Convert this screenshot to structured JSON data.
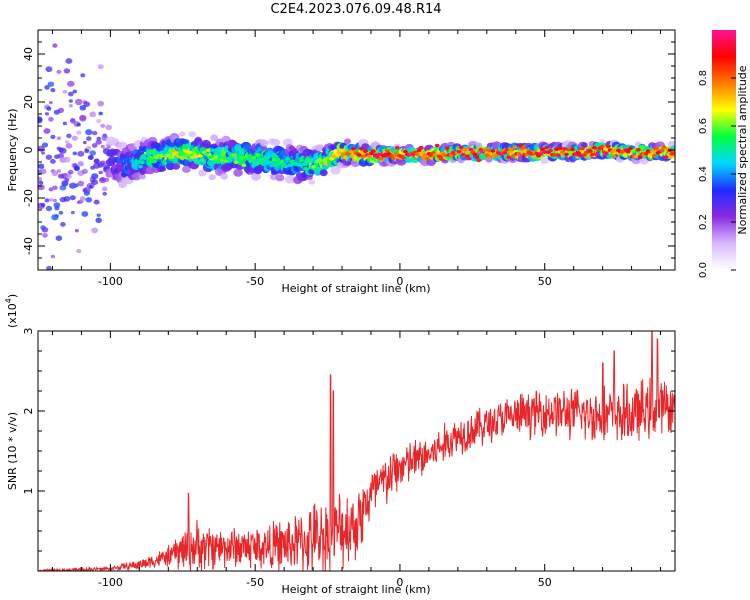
{
  "title": "C2E4.2023.076.09.48.R14",
  "colors": {
    "background": "#ffffff",
    "axis": "#000000",
    "snr_line": "#e8262a"
  },
  "chart_data": [
    {
      "type": "heatmap",
      "name": "spectrogram",
      "xlabel": "Height of straight line (km)",
      "ylabel": "Frequency (Hz)",
      "xlim": [
        -125,
        95
      ],
      "ylim": [
        -50,
        50
      ],
      "xticks": [
        -100,
        -50,
        0,
        50
      ],
      "yticks": [
        -40,
        -20,
        0,
        20,
        40
      ],
      "colorbar": {
        "label": "Normalized spectral amplitude",
        "range": [
          0.0,
          1.0
        ],
        "ticks": [
          "0.0",
          "0.2",
          "0.4",
          "0.6",
          "0.8"
        ],
        "colormap": [
          "#ffffff",
          "#d9b8ff",
          "#8a2be2",
          "#1f2bff",
          "#00d8ff",
          "#00ff40",
          "#ffff00",
          "#ff7a00",
          "#ff0000",
          "#ff1493"
        ]
      },
      "ridge": [
        {
          "x": -125,
          "center_hz": 0,
          "spread_hz": 50,
          "peak": 0.35
        },
        {
          "x": -100,
          "center_hz": -5,
          "spread_hz": 12,
          "peak": 0.3
        },
        {
          "x": -95,
          "center_hz": -6,
          "spread_hz": 9,
          "peak": 0.4
        },
        {
          "x": -85,
          "center_hz": -3,
          "spread_hz": 8,
          "peak": 0.6
        },
        {
          "x": -75,
          "center_hz": -1,
          "spread_hz": 7,
          "peak": 0.7
        },
        {
          "x": -65,
          "center_hz": -3,
          "spread_hz": 8,
          "peak": 0.6
        },
        {
          "x": -55,
          "center_hz": -3,
          "spread_hz": 8,
          "peak": 0.6
        },
        {
          "x": -45,
          "center_hz": -4,
          "spread_hz": 8,
          "peak": 0.55
        },
        {
          "x": -35,
          "center_hz": -6,
          "spread_hz": 8,
          "peak": 0.55
        },
        {
          "x": -28,
          "center_hz": -6,
          "spread_hz": 7,
          "peak": 0.6
        },
        {
          "x": -20,
          "center_hz": -1,
          "spread_hz": 5,
          "peak": 0.8
        },
        {
          "x": -10,
          "center_hz": -2,
          "spread_hz": 4,
          "peak": 0.95
        },
        {
          "x": 0,
          "center_hz": -2,
          "spread_hz": 3,
          "peak": 0.95
        },
        {
          "x": 10,
          "center_hz": -2,
          "spread_hz": 3,
          "peak": 0.95
        },
        {
          "x": 20,
          "center_hz": -1,
          "spread_hz": 3,
          "peak": 0.95
        },
        {
          "x": 30,
          "center_hz": -1,
          "spread_hz": 3,
          "peak": 0.95
        },
        {
          "x": 40,
          "center_hz": -1,
          "spread_hz": 3,
          "peak": 0.95
        },
        {
          "x": 50,
          "center_hz": -1,
          "spread_hz": 3,
          "peak": 0.95
        },
        {
          "x": 60,
          "center_hz": -1,
          "spread_hz": 3,
          "peak": 0.95
        },
        {
          "x": 70,
          "center_hz": 0,
          "spread_hz": 3,
          "peak": 0.95
        },
        {
          "x": 80,
          "center_hz": -1,
          "spread_hz": 3,
          "peak": 0.9
        },
        {
          "x": 95,
          "center_hz": -1,
          "spread_hz": 3,
          "peak": 0.9
        }
      ]
    },
    {
      "type": "line",
      "name": "snr",
      "xlabel": "Height of straight line (km)",
      "ylabel": "SNR (10 * v/v)",
      "y_multiplier_label": "(x10",
      "y_multiplier_exp": "4",
      "xlim": [
        -125,
        95
      ],
      "ylim": [
        0,
        3
      ],
      "xticks": [
        -100,
        -50,
        0,
        50
      ],
      "yticks": [
        1,
        2,
        3
      ],
      "envelope": [
        {
          "x": -125,
          "mean": 0.0,
          "amp": 0.02
        },
        {
          "x": -100,
          "mean": 0.03,
          "amp": 0.03
        },
        {
          "x": -90,
          "mean": 0.08,
          "amp": 0.08
        },
        {
          "x": -80,
          "mean": 0.18,
          "amp": 0.15
        },
        {
          "x": -73,
          "mean": 0.3,
          "amp": 0.4
        },
        {
          "x": -60,
          "mean": 0.3,
          "amp": 0.3
        },
        {
          "x": -45,
          "mean": 0.3,
          "amp": 0.35
        },
        {
          "x": -35,
          "mean": 0.35,
          "amp": 0.45
        },
        {
          "x": -25,
          "mean": 0.45,
          "amp": 0.6
        },
        {
          "x": -15,
          "mean": 0.6,
          "amp": 0.55
        },
        {
          "x": -10,
          "mean": 0.95,
          "amp": 0.45
        },
        {
          "x": 0,
          "mean": 1.3,
          "amp": 0.35
        },
        {
          "x": 10,
          "mean": 1.45,
          "amp": 0.3
        },
        {
          "x": 20,
          "mean": 1.7,
          "amp": 0.3
        },
        {
          "x": 35,
          "mean": 1.9,
          "amp": 0.3
        },
        {
          "x": 50,
          "mean": 2.0,
          "amp": 0.35
        },
        {
          "x": 65,
          "mean": 1.95,
          "amp": 0.4
        },
        {
          "x": 80,
          "mean": 1.95,
          "amp": 0.45
        },
        {
          "x": 88,
          "mean": 2.05,
          "amp": 0.45
        },
        {
          "x": 95,
          "mean": 2.05,
          "amp": 0.35
        }
      ],
      "spikes": [
        {
          "x": -73,
          "y": 0.97
        },
        {
          "x": -24,
          "y": 2.45
        },
        {
          "x": -23,
          "y": 2.25
        },
        {
          "x": 70,
          "y": 2.6
        },
        {
          "x": 74,
          "y": 2.75
        },
        {
          "x": 87,
          "y": 3.05
        },
        {
          "x": 89,
          "y": 2.9
        }
      ]
    }
  ]
}
